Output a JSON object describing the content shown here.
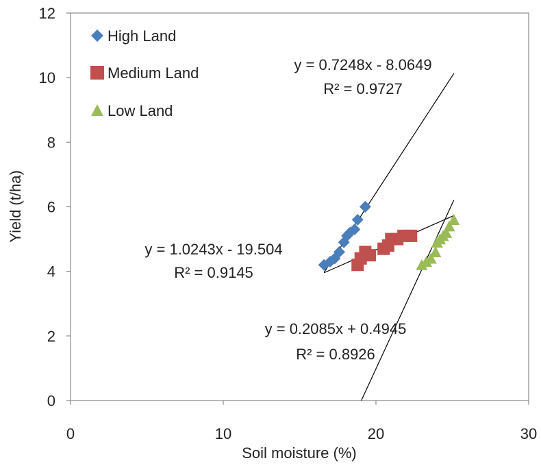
{
  "chart_data": {
    "type": "scatter",
    "xlabel": "Soil moisture (%)",
    "ylabel": "Yield (t/ha)",
    "xlim": [
      0,
      30
    ],
    "ylim": [
      0,
      12
    ],
    "xticks": [
      0,
      10,
      20,
      30
    ],
    "yticks": [
      0,
      2,
      4,
      6,
      8,
      10,
      12
    ],
    "grid": false,
    "legend_position": "top-left",
    "series": [
      {
        "name": "High Land",
        "marker": "diamond",
        "color": "#4A7EBB",
        "points": [
          [
            16.6,
            4.2
          ],
          [
            17.0,
            4.3
          ],
          [
            17.3,
            4.4
          ],
          [
            17.6,
            4.6
          ],
          [
            17.9,
            4.9
          ],
          [
            18.1,
            5.1
          ],
          [
            18.3,
            5.2
          ],
          [
            18.6,
            5.3
          ],
          [
            18.8,
            5.6
          ],
          [
            19.3,
            6.0
          ]
        ],
        "fit": {
          "slope": 0.7248,
          "intercept": -8.0649,
          "x_range": [
            16.6,
            25.1
          ],
          "equation": "y = 0.7248x - 8.0649",
          "r2": "R² = 0.9727"
        }
      },
      {
        "name": "Medium Land",
        "marker": "square",
        "color": "#C0504D",
        "points": [
          [
            18.8,
            4.2
          ],
          [
            19.0,
            4.4
          ],
          [
            19.3,
            4.6
          ],
          [
            19.6,
            4.5
          ],
          [
            20.5,
            4.7
          ],
          [
            20.8,
            4.8
          ],
          [
            21.0,
            5.0
          ],
          [
            21.4,
            5.0
          ],
          [
            21.8,
            5.1
          ],
          [
            22.3,
            5.1
          ]
        ],
        "fit": {
          "slope": 0.2085,
          "intercept": 0.4945,
          "x_range": [
            16.6,
            25.1
          ],
          "equation": "y = 0.2085x + 0.4945",
          "r2": "R² = 0.8926"
        }
      },
      {
        "name": "Low Land",
        "marker": "triangle",
        "color": "#9BBB59",
        "points": [
          [
            23.0,
            4.2
          ],
          [
            23.3,
            4.3
          ],
          [
            23.6,
            4.4
          ],
          [
            23.9,
            4.6
          ],
          [
            24.0,
            4.9
          ],
          [
            24.2,
            5.0
          ],
          [
            24.4,
            5.1
          ],
          [
            24.6,
            5.2
          ],
          [
            24.8,
            5.4
          ],
          [
            25.1,
            5.6
          ]
        ],
        "fit": {
          "slope": 1.0243,
          "intercept": -19.504,
          "x_range": [
            17.3,
            25.1
          ],
          "equation": "y = 1.0243x - 19.504",
          "r2": "R² = 0.9145"
        }
      }
    ]
  }
}
